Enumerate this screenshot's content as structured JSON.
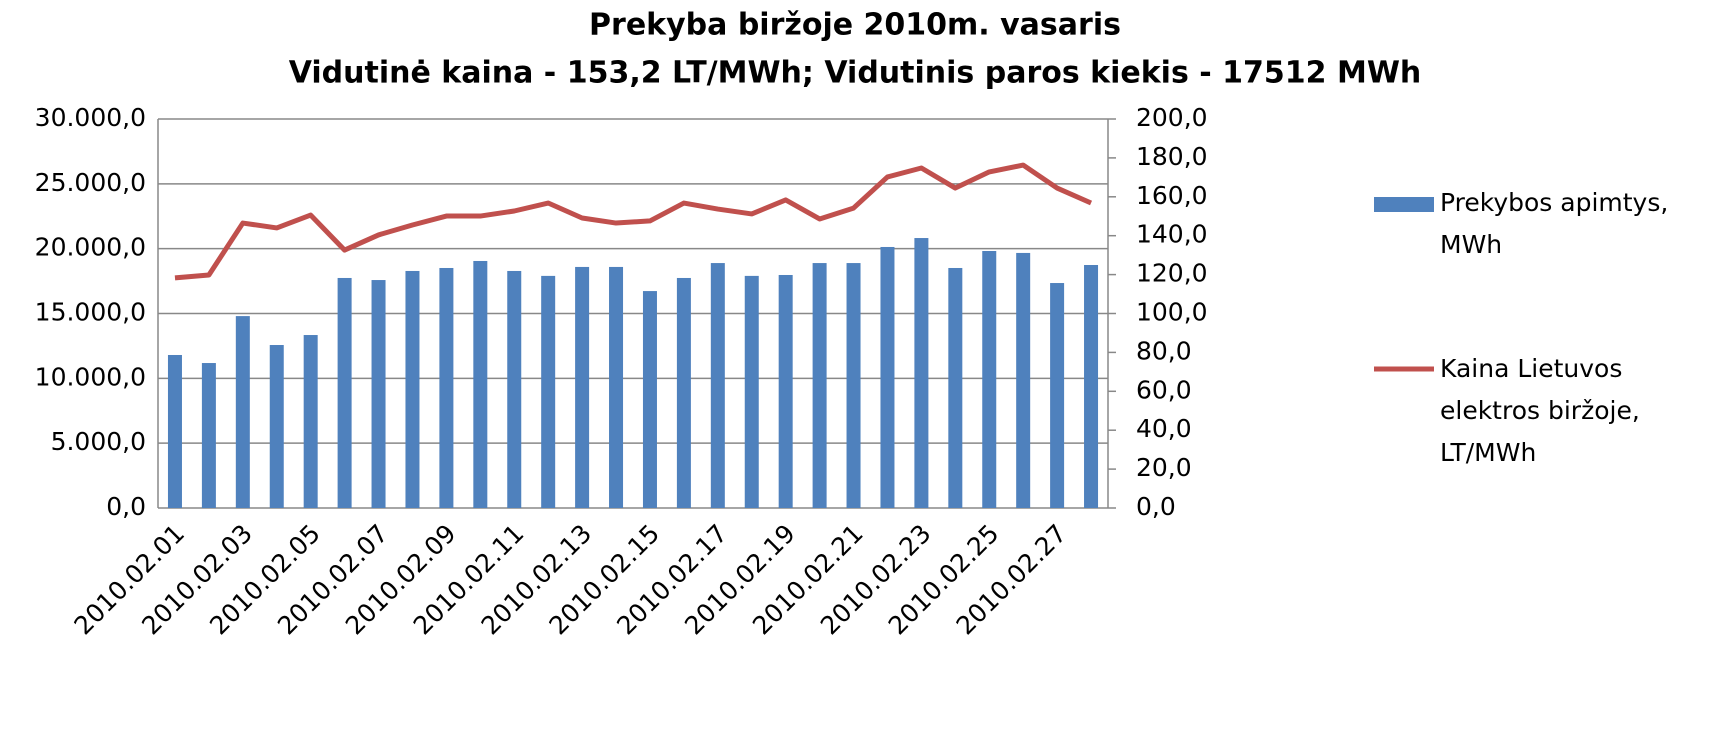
{
  "chart_data": {
    "type": "combo",
    "title": "Prekyba biržoje 2010m. vasaris",
    "subtitle": "Vidutinė kaina - 153,2 LT/MWh; Vidutinis paros kiekis - 17512 MWh",
    "categories": [
      "2010.02.01",
      null,
      "2010.02.03",
      null,
      "2010.02.05",
      null,
      "2010.02.07",
      null,
      "2010.02.09",
      null,
      "2010.02.11",
      null,
      "2010.02.13",
      null,
      "2010.02.15",
      null,
      "2010.02.17",
      null,
      "2010.02.19",
      null,
      "2010.02.21",
      null,
      "2010.02.23",
      null,
      "2010.02.25",
      null,
      "2010.02.27",
      null
    ],
    "series": [
      {
        "name": "Prekybos apimtys, MWh",
        "type": "bar",
        "axis": "y",
        "color": "#4f81bd",
        "values": [
          11800,
          11180,
          14800,
          12570,
          13340,
          17740,
          17580,
          18280,
          18510,
          19050,
          18280,
          17900,
          18590,
          18590,
          16730,
          17740,
          18890,
          17900,
          17970,
          18890,
          18890,
          20130,
          20820,
          18510,
          19820,
          19670,
          17350,
          18740
        ]
      },
      {
        "name": "Kaina Lietuvos elektros biržoje, LT/MWh",
        "type": "line",
        "axis": "y2",
        "color": "#c0504d",
        "values": [
          118.3,
          119.8,
          146.5,
          144,
          150.6,
          132.6,
          140.4,
          145.5,
          150.1,
          150.1,
          152.7,
          156.8,
          149.1,
          146.5,
          147.6,
          156.8,
          153.7,
          151.2,
          158.4,
          148.6,
          154.2,
          170.2,
          174.8,
          164.5,
          172.8,
          176.3,
          164.5,
          156.8
        ]
      }
    ],
    "ylim": [
      0,
      30000
    ],
    "yticks": [
      {
        "value": 0,
        "label": "0,0"
      },
      {
        "value": 5000,
        "label": "5.000,0"
      },
      {
        "value": 10000,
        "label": "10.000,0"
      },
      {
        "value": 15000,
        "label": "15.000,0"
      },
      {
        "value": 20000,
        "label": "20.000,0"
      },
      {
        "value": 25000,
        "label": "25.000,0"
      },
      {
        "value": 30000,
        "label": "30.000,0"
      }
    ],
    "y2lim": [
      0,
      200
    ],
    "y2ticks": [
      {
        "value": 0,
        "label": "0,0"
      },
      {
        "value": 20,
        "label": "20,0"
      },
      {
        "value": 40,
        "label": "40,0"
      },
      {
        "value": 60,
        "label": "60,0"
      },
      {
        "value": 80,
        "label": "80,0"
      },
      {
        "value": 100,
        "label": "100,0"
      },
      {
        "value": 120,
        "label": "120,0"
      },
      {
        "value": 140,
        "label": "140,0"
      },
      {
        "value": 160,
        "label": "160,0"
      },
      {
        "value": 180,
        "label": "180,0"
      },
      {
        "value": 200,
        "label": "200,0"
      }
    ],
    "grid": true,
    "legend": "right"
  }
}
